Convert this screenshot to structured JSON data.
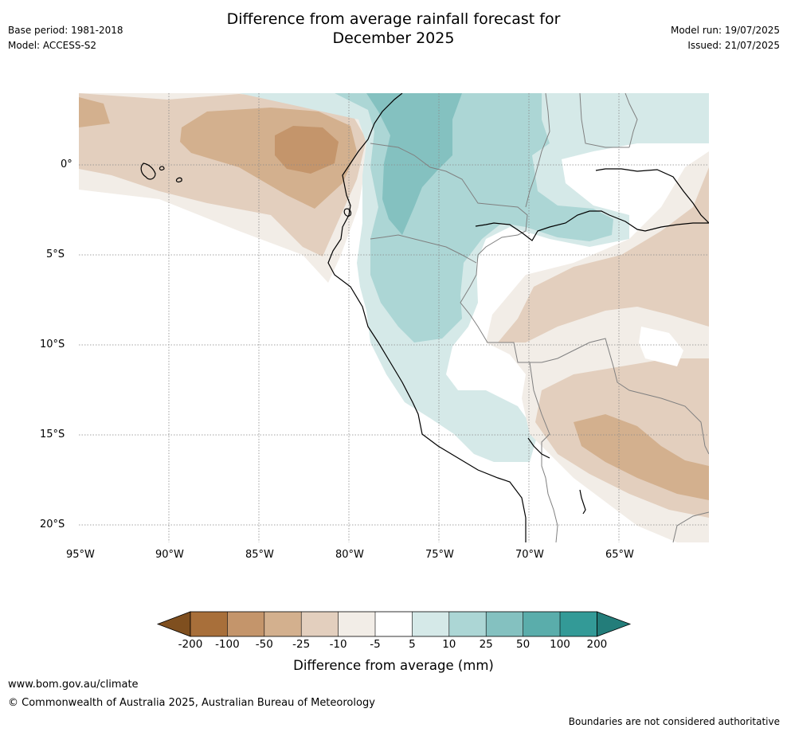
{
  "header": {
    "title_line1": "Difference from average rainfall forecast for",
    "title_line2": "December 2025",
    "base_period": "Base period: 1981-2018",
    "model": "Model: ACCESS-S2",
    "model_run": "Model run: 19/07/2025",
    "issued": "Issued: 21/07/2025"
  },
  "map": {
    "lon_ticks": [
      "95°W",
      "90°W",
      "85°W",
      "80°W",
      "75°W",
      "70°W",
      "65°W"
    ],
    "lat_ticks": [
      "0°",
      "5°S",
      "10°S",
      "15°S",
      "20°S"
    ]
  },
  "colorbar": {
    "title": "Difference from average (mm)",
    "labels": [
      "-200",
      "-100",
      "-50",
      "-25",
      "-10",
      "-5",
      "5",
      "10",
      "25",
      "50",
      "100",
      "200"
    ],
    "colors": [
      "#7f4f1f",
      "#a86f3a",
      "#c4956b",
      "#d3b08e",
      "#e3cfbe",
      "#f2ede7",
      "#ffffff",
      "#d5e9e8",
      "#acd6d5",
      "#84c1c0",
      "#5aadab",
      "#339a97",
      "#237d7a"
    ]
  },
  "footer": {
    "website": "www.bom.gov.au/climate",
    "copyright": "© Commonwealth of Australia 2025, Australian Bureau of Meteorology",
    "disclaimer": "Boundaries are not considered authoritative"
  }
}
